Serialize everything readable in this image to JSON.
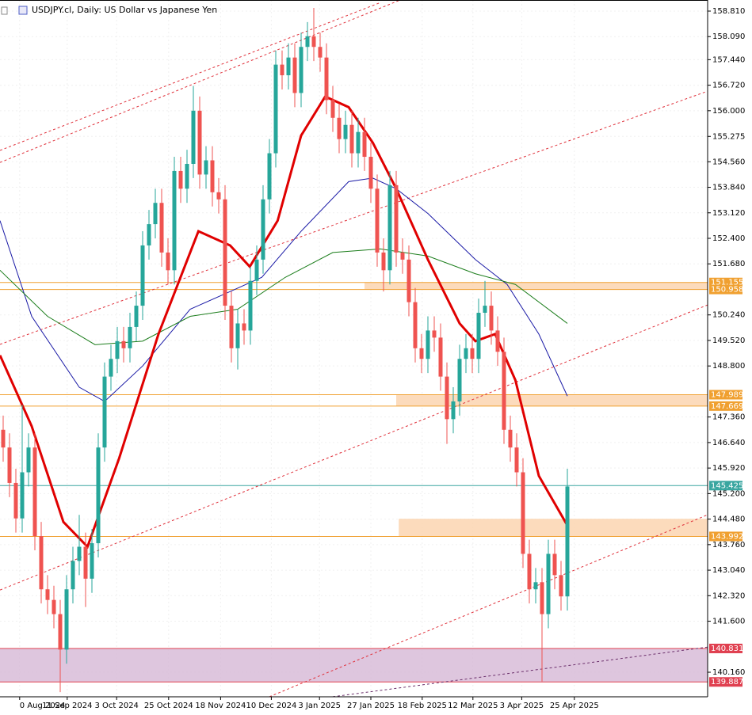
{
  "chart_data": {
    "type": "candlestick",
    "title": "USDJPY.cl, Daily:  US Dollar vs Japanese Yen",
    "up_color": "#26a69a",
    "down_color": "#ef5350",
    "grid": true,
    "ylim": [
      139.468,
      159.123
    ],
    "yticks": [
      {
        "value": 158.81,
        "label": "158.810"
      },
      {
        "value": 158.09,
        "label": "158.090"
      },
      {
        "value": 157.44,
        "label": "157.440"
      },
      {
        "value": 156.72,
        "label": "156.720"
      },
      {
        "value": 156.0,
        "label": "156.000"
      },
      {
        "value": 155.275,
        "label": "155.275"
      },
      {
        "value": 154.56,
        "label": "154.560"
      },
      {
        "value": 153.84,
        "label": "153.840"
      },
      {
        "value": 153.12,
        "label": "153.120"
      },
      {
        "value": 152.4,
        "label": "152.400"
      },
      {
        "value": 151.68,
        "label": "151.680"
      },
      {
        "value": 150.24,
        "label": "150.240"
      },
      {
        "value": 149.52,
        "label": "149.520"
      },
      {
        "value": 148.8,
        "label": "148.800"
      },
      {
        "value": 147.36,
        "label": "147.360"
      },
      {
        "value": 146.64,
        "label": "146.640"
      },
      {
        "value": 145.92,
        "label": "145.920"
      },
      {
        "value": 145.2,
        "label": "145.200"
      },
      {
        "value": 144.48,
        "label": "144.480"
      },
      {
        "value": 143.76,
        "label": "143.760"
      },
      {
        "value": 143.04,
        "label": "143.040"
      },
      {
        "value": 142.32,
        "label": "142.320"
      },
      {
        "value": 141.6,
        "label": "141.600"
      },
      {
        "value": 140.16,
        "label": "140.160"
      }
    ],
    "xticks": [
      {
        "value": 2.6,
        "label": "0 Aug 2024"
      },
      {
        "value": 10.1,
        "label": "11 Sep 2024"
      },
      {
        "value": 17.9,
        "label": "3 Oct 2024"
      },
      {
        "value": 26.1,
        "label": "25 Oct 2024"
      },
      {
        "value": 34.3,
        "label": "18 Nov 2024"
      },
      {
        "value": 42.3,
        "label": "10 Dec 2024"
      },
      {
        "value": 49.9,
        "label": "3 Jan 2025"
      },
      {
        "value": 58,
        "label": "27 Jan 2025"
      },
      {
        "value": 66.1,
        "label": "18 Feb 2025"
      },
      {
        "value": 74.1,
        "label": "12 Mar 2025"
      },
      {
        "value": 81.8,
        "label": "3 Apr 2025"
      },
      {
        "value": 90.1,
        "label": "25 Apr 2025"
      }
    ],
    "open": [
      147.0,
      146.5,
      145.5,
      144.5,
      145.8,
      146.5,
      144.0,
      142.5,
      142.2,
      141.8,
      140.8,
      142.5,
      143.3,
      143.7,
      142.8,
      143.8,
      146.5,
      148.5,
      149.0,
      149.5,
      149.3,
      149.9,
      150.5,
      152.2,
      152.8,
      153.4,
      152.0,
      151.5,
      154.3,
      153.8,
      154.5,
      156.0,
      154.2,
      154.6,
      153.7,
      153.5,
      150.5,
      149.3,
      150.0,
      149.8,
      151.2,
      151.8,
      153.5,
      154.8,
      157.3,
      157.0,
      157.5,
      156.5,
      157.8,
      158.1,
      157.8,
      157.5,
      156.3,
      155.8,
      155.2,
      155.6,
      154.8,
      155.4,
      154.7,
      153.8,
      152.0,
      151.5,
      153.9,
      152.0,
      151.8,
      150.6,
      149.3,
      149.0,
      149.8,
      149.6,
      148.5,
      147.3,
      147.8,
      149.0,
      149.3,
      149.0,
      150.3,
      150.5,
      149.8,
      149.2,
      147.0,
      146.5,
      145.8,
      143.5,
      142.5,
      142.7,
      141.8,
      143.5,
      142.9,
      142.3
    ],
    "high": [
      147.4,
      146.9,
      145.9,
      147.7,
      146.9,
      146.9,
      144.4,
      142.9,
      142.6,
      142.2,
      142.9,
      143.7,
      144.6,
      144.1,
      144.2,
      146.9,
      148.9,
      149.4,
      149.9,
      149.9,
      150.3,
      150.9,
      152.6,
      153.2,
      153.8,
      153.8,
      152.4,
      154.7,
      154.7,
      154.9,
      156.7,
      156.4,
      155.0,
      155.0,
      154.1,
      153.9,
      150.9,
      150.4,
      150.4,
      151.6,
      152.2,
      153.9,
      155.2,
      157.7,
      157.7,
      157.9,
      157.9,
      158.2,
      158.5,
      158.9,
      158.2,
      157.9,
      156.7,
      156.2,
      156.0,
      156.0,
      155.8,
      155.8,
      155.1,
      154.2,
      152.4,
      154.3,
      154.3,
      152.4,
      152.2,
      151.0,
      149.7,
      150.2,
      150.2,
      150.0,
      148.9,
      148.2,
      149.4,
      149.7,
      149.7,
      150.7,
      151.2,
      150.9,
      150.2,
      149.6,
      147.4,
      146.9,
      146.2,
      143.9,
      143.1,
      143.1,
      143.9,
      143.9,
      143.3,
      145.9
    ],
    "low": [
      146.1,
      145.1,
      144.1,
      144.1,
      145.4,
      143.6,
      142.1,
      141.8,
      141.4,
      139.6,
      140.4,
      142.1,
      142.9,
      142.0,
      142.4,
      143.4,
      146.1,
      148.1,
      148.6,
      148.9,
      148.9,
      149.5,
      150.1,
      151.8,
      152.4,
      151.6,
      151.1,
      151.1,
      153.4,
      153.4,
      154.1,
      153.8,
      153.8,
      153.3,
      153.1,
      150.1,
      148.9,
      148.7,
      149.4,
      149.4,
      150.8,
      151.4,
      153.1,
      154.4,
      156.6,
      156.6,
      156.1,
      156.1,
      157.4,
      157.4,
      157.1,
      155.9,
      155.4,
      154.8,
      154.8,
      154.4,
      154.4,
      154.3,
      153.4,
      151.6,
      150.9,
      151.1,
      151.6,
      151.4,
      150.2,
      148.9,
      148.6,
      148.6,
      149.2,
      148.1,
      146.6,
      146.9,
      147.4,
      148.6,
      148.6,
      148.6,
      149.9,
      149.4,
      148.8,
      146.6,
      146.1,
      145.4,
      143.1,
      142.1,
      142.1,
      139.9,
      141.4,
      142.5,
      141.9,
      141.9
    ],
    "close": [
      146.5,
      145.5,
      144.5,
      145.8,
      146.5,
      144.0,
      142.5,
      142.2,
      141.8,
      140.8,
      142.5,
      143.3,
      143.7,
      142.8,
      143.8,
      146.5,
      148.5,
      149.0,
      149.5,
      149.3,
      149.9,
      150.5,
      152.2,
      152.8,
      153.4,
      152.0,
      151.5,
      154.3,
      153.8,
      154.5,
      156.0,
      154.2,
      154.6,
      153.7,
      153.5,
      150.5,
      149.3,
      150.0,
      149.8,
      151.2,
      151.8,
      153.5,
      154.8,
      157.3,
      157.0,
      157.5,
      156.5,
      157.8,
      158.1,
      157.8,
      157.5,
      156.3,
      155.8,
      155.2,
      155.6,
      154.8,
      155.4,
      154.7,
      153.8,
      152.0,
      151.5,
      153.9,
      152.0,
      151.8,
      150.6,
      149.3,
      149.0,
      149.8,
      149.6,
      148.5,
      147.3,
      147.8,
      149.0,
      149.3,
      149.0,
      150.3,
      150.5,
      149.8,
      149.2,
      147.0,
      146.5,
      145.8,
      143.5,
      142.5,
      142.7,
      141.8,
      143.5,
      142.9,
      142.3,
      145.4
    ],
    "lines": [
      {
        "color": "#1a1aa6",
        "width": 1,
        "x": [
          -0.5,
          4.5,
          12,
          16,
          22,
          29.5,
          35.8,
          40.8,
          47,
          54.5,
          58.3,
          62,
          67,
          74.5,
          79.5,
          84.5,
          89
        ],
        "values": [
          152.9,
          150.2,
          148.2,
          147.8,
          148.8,
          150.4,
          150.9,
          151.3,
          152.6,
          154.0,
          154.1,
          153.8,
          153.1,
          151.8,
          151.1,
          149.7,
          147.95
        ]
      },
      {
        "color": "#1b7d1b",
        "width": 1,
        "x": [
          -0.5,
          7,
          14.5,
          22,
          29.5,
          37,
          44.5,
          52,
          59.5,
          67,
          74.5,
          80.8,
          89
        ],
        "values": [
          151.5,
          150.2,
          149.4,
          149.5,
          150.2,
          150.4,
          151.3,
          152.0,
          152.1,
          151.9,
          151.4,
          151.1,
          150.0
        ]
      },
      {
        "color": "#e00000",
        "width": 3,
        "x": [
          -0.5,
          4.5,
          9.5,
          13.3,
          18.3,
          24.5,
          30.8,
          35.8,
          38.9,
          43.3,
          47,
          50.8,
          54.5,
          58.3,
          62,
          67,
          72,
          74.5,
          77.6,
          80.8,
          84.5,
          89
        ],
        "values": [
          149.1,
          147.1,
          144.4,
          143.7,
          146.2,
          149.7,
          152.6,
          152.2,
          151.6,
          152.9,
          155.3,
          156.4,
          156.1,
          155.1,
          153.8,
          151.8,
          150.0,
          149.5,
          149.7,
          148.4,
          145.7,
          144.3
        ]
      }
    ],
    "trendlines": [
      {
        "color": "#e0303a",
        "x": [
          -0.5,
          59.5
        ],
        "values": [
          154.88,
          159.05
        ]
      },
      {
        "color": "#e0303a",
        "x": [
          -0.5,
          62.6
        ],
        "values": [
          154.54,
          159.12
        ]
      },
      {
        "color": "#e0303a",
        "x": [
          -0.5,
          111.1
        ],
        "values": [
          149.41,
          156.55
        ]
      },
      {
        "color": "#e0303a",
        "x": [
          -0.5,
          111.1
        ],
        "values": [
          142.48,
          150.52
        ]
      },
      {
        "color": "#e0303a",
        "x": [
          42,
          111.1
        ],
        "values": [
          139.47,
          144.6
        ]
      },
      {
        "color": "#6a2e6a",
        "x": [
          52,
          111.1
        ],
        "values": [
          139.47,
          140.87
        ]
      }
    ],
    "zones": [
      {
        "from": 151.155,
        "to": 150.958,
        "start": 57,
        "color": "#fbd5b0"
      },
      {
        "from": 147.989,
        "to": 147.669,
        "start": 62,
        "color": "#fbd5b0"
      },
      {
        "from": 144.49,
        "to": 143.992,
        "start": 62.4,
        "color": "#fbd5b0"
      },
      {
        "from": 140.831,
        "to": 139.887,
        "start": -0.5,
        "color": "#d8bcd8"
      }
    ],
    "levels": [
      {
        "value": 151.155,
        "color": "#f0a030"
      },
      {
        "value": 150.958,
        "color": "#f0a030"
      },
      {
        "value": 147.989,
        "color": "#f0a030"
      },
      {
        "value": 147.669,
        "color": "#f0a030"
      },
      {
        "value": 145.425,
        "color": "#3aa6a0"
      },
      {
        "value": 143.992,
        "color": "#f0a030"
      },
      {
        "value": 140.831,
        "color": "#e04050"
      },
      {
        "value": 139.887,
        "color": "#e04050"
      }
    ]
  }
}
